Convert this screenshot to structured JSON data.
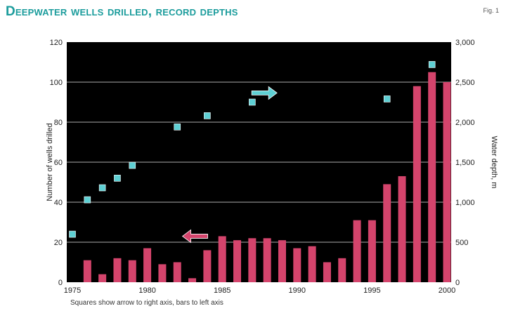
{
  "title": "Deepwater wells drilled, record depths",
  "fig_label": "Fig. 1",
  "footnote": "Squares show arrow to right axis, bars to left axis",
  "colors": {
    "plot_bg": "#000000",
    "bars": "#d4446c",
    "squares": "#5ed0d4",
    "grid": "#8a8a8a",
    "title": "#1b9c9c"
  },
  "chart_data": {
    "type": "bar",
    "xlabel": "",
    "ylabel": "Number of wells drilled",
    "y2label": "Water depth, m",
    "ylim": [
      0,
      120
    ],
    "y2lim": [
      0,
      3000
    ],
    "xlim": [
      1975,
      2000
    ],
    "x_ticks": [
      1975,
      1980,
      1985,
      1990,
      1995,
      2000
    ],
    "y_ticks": [
      0,
      20,
      40,
      60,
      80,
      100,
      120
    ],
    "y2_ticks": [
      "0",
      "500",
      "1,000",
      "1,500",
      "2,000",
      "2,500",
      "3,000"
    ],
    "grid": true,
    "series": [
      {
        "kind": "bar",
        "axis": "left",
        "x": [
          1976,
          1977,
          1978,
          1979,
          1980,
          1981,
          1982,
          1983,
          1984,
          1985,
          1986,
          1987,
          1988,
          1989,
          1990,
          1991,
          1992,
          1993,
          1994,
          1995,
          1996,
          1997,
          1998,
          1999,
          2000
        ],
        "values": [
          11,
          4,
          12,
          11,
          17,
          9,
          10,
          2,
          16,
          23,
          21,
          22,
          22,
          21,
          17,
          18,
          10,
          12,
          31,
          31,
          49,
          53,
          98,
          105,
          100
        ]
      },
      {
        "kind": "scatter",
        "axis": "right",
        "x": [
          1975,
          1976,
          1977,
          1978,
          1979,
          1982,
          1984,
          1987,
          1996,
          1999
        ],
        "values": [
          600,
          1030,
          1180,
          1300,
          1460,
          1940,
          2080,
          2250,
          2290,
          2720
        ]
      }
    ],
    "annotations": [
      {
        "kind": "arrow",
        "direction": "right",
        "color": "#5ed0d4",
        "x": 1988,
        "y_right": 2365
      },
      {
        "kind": "arrow",
        "direction": "left",
        "color": "#d4446c",
        "x": 1983,
        "y_left": 23
      }
    ]
  }
}
